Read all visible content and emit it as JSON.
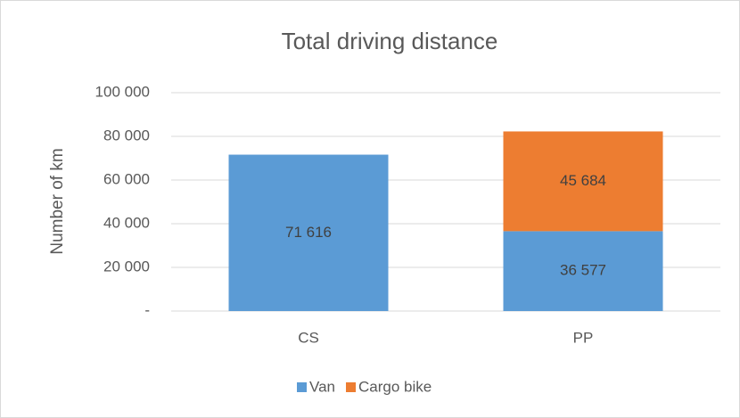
{
  "chart_data": {
    "type": "stacked_bar",
    "title": "Total driving distance",
    "y_label": "Number of km",
    "categories": [
      "CS",
      "PP"
    ],
    "series": [
      {
        "name": "Van",
        "color": "#5b9bd5",
        "values": [
          71616,
          36577
        ],
        "value_labels": [
          "71 616",
          "36 577"
        ]
      },
      {
        "name": "Cargo bike",
        "color": "#ed7d31",
        "values": [
          null,
          45684
        ],
        "value_labels": [
          null,
          "45 684"
        ]
      }
    ],
    "ylim": [
      0,
      100000
    ],
    "yticks": [
      {
        "value": 0,
        "label": "-"
      },
      {
        "value": 20000,
        "label": "20 000"
      },
      {
        "value": 40000,
        "label": "40 000"
      },
      {
        "value": 60000,
        "label": "60 000"
      },
      {
        "value": 80000,
        "label": "80 000"
      },
      {
        "value": 100000,
        "label": "100 000"
      }
    ],
    "grid": true,
    "legend": "bottom"
  }
}
